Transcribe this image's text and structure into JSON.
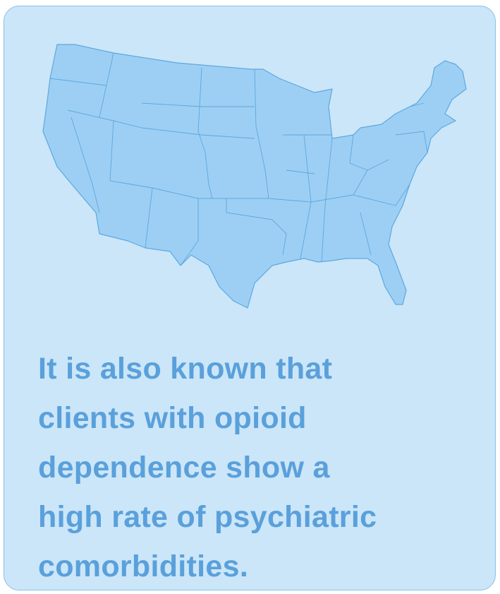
{
  "card": {
    "lines": [
      "It is also known that",
      "clients with opioid",
      "dependence show a",
      "high rate of psychiatric",
      "comorbidities."
    ]
  }
}
